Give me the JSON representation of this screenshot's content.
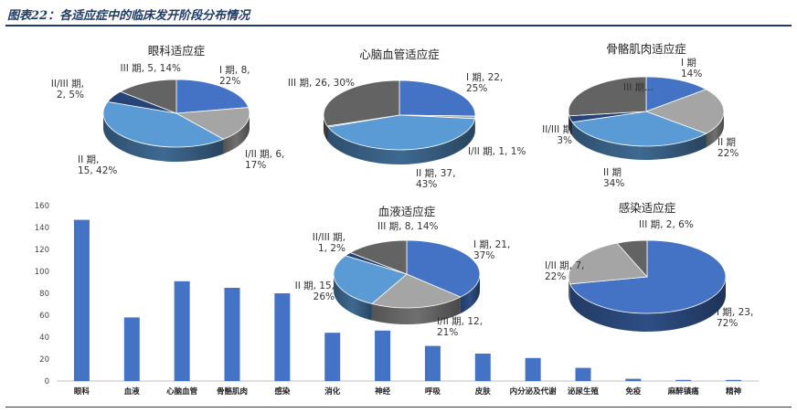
{
  "figure": {
    "title": "图表22：各适应症中的临床发开阶段分布情况"
  },
  "chart_data": [
    {
      "type": "bar",
      "categories": [
        "眼科",
        "血液",
        "心脑血管",
        "骨骼肌肉",
        "感染",
        "消化",
        "神经",
        "呼吸",
        "皮肤",
        "内分泌及代谢",
        "泌尿生殖",
        "免疫",
        "麻醉镇痛",
        "精神"
      ],
      "values": [
        147,
        58,
        91,
        85,
        80,
        44,
        46,
        32,
        25,
        21,
        12,
        2,
        1,
        1
      ],
      "ylim": [
        0,
        160
      ],
      "yticks": [
        0,
        20,
        40,
        60,
        80,
        100,
        120,
        140,
        160
      ],
      "grid": false,
      "color": "#4472c4"
    },
    {
      "type": "pie",
      "title": "眼科适应症",
      "slices": [
        {
          "label": "I 期, 8,\n22%",
          "value": 8,
          "color": "#4472c4"
        },
        {
          "label": "I/II 期, 6,\n17%",
          "value": 6,
          "color": "#a5a5a5"
        },
        {
          "label": "II 期,\n15, 42%",
          "value": 15,
          "color": "#5b9bd5"
        },
        {
          "label": "II/III 期,\n2, 5%",
          "value": 2,
          "color": "#264478"
        },
        {
          "label": "III 期, 5, 14%",
          "value": 5,
          "color": "#636363"
        }
      ]
    },
    {
      "type": "pie",
      "title": "心脑血管适应症",
      "slices": [
        {
          "label": "I 期, 22,\n25%",
          "value": 22,
          "color": "#4472c4"
        },
        {
          "label": "I/II 期, 1, 1%",
          "value": 1,
          "color": "#a5a5a5"
        },
        {
          "label": "II 期, 37,\n43%",
          "value": 37,
          "color": "#5b9bd5"
        },
        {
          "label": "",
          "value": 0.4,
          "color": "#264478"
        },
        {
          "label": "III 期, 26, 30%",
          "value": 26,
          "color": "#636363"
        }
      ]
    },
    {
      "type": "pie",
      "title": "骨骼肌肉适应症",
      "slices": [
        {
          "label": "I 期\n14%",
          "value": 14,
          "color": "#4472c4"
        },
        {
          "label": "II 期\n22%",
          "value": 22,
          "color": "#a5a5a5"
        },
        {
          "label": "II 期\n34%",
          "value": 34,
          "color": "#5b9bd5"
        },
        {
          "label": "II/III 期\n3%",
          "value": 3,
          "color": "#264478"
        },
        {
          "label": "III 期...",
          "value": 27,
          "color": "#636363"
        }
      ]
    },
    {
      "type": "pie",
      "title": "血液适应症",
      "slices": [
        {
          "label": "I 期, 21,\n37%",
          "value": 21,
          "color": "#4472c4"
        },
        {
          "label": "I/II 期, 12,\n21%",
          "value": 12,
          "color": "#a5a5a5"
        },
        {
          "label": "II 期, 15,\n26%",
          "value": 15,
          "color": "#5b9bd5"
        },
        {
          "label": "II/III 期,\n1, 2%",
          "value": 1,
          "color": "#264478"
        },
        {
          "label": "III 期, 8, 14%",
          "value": 8,
          "color": "#636363"
        }
      ]
    },
    {
      "type": "pie",
      "title": "感染适应症",
      "slices": [
        {
          "label": "I 期, 23,\n72%",
          "value": 23,
          "color": "#4472c4"
        },
        {
          "label": "I/II 期, 7,\n22%",
          "value": 7,
          "color": "#a5a5a5"
        },
        {
          "label": "III 期, 2, 6%",
          "value": 2,
          "color": "#636363"
        }
      ]
    }
  ]
}
